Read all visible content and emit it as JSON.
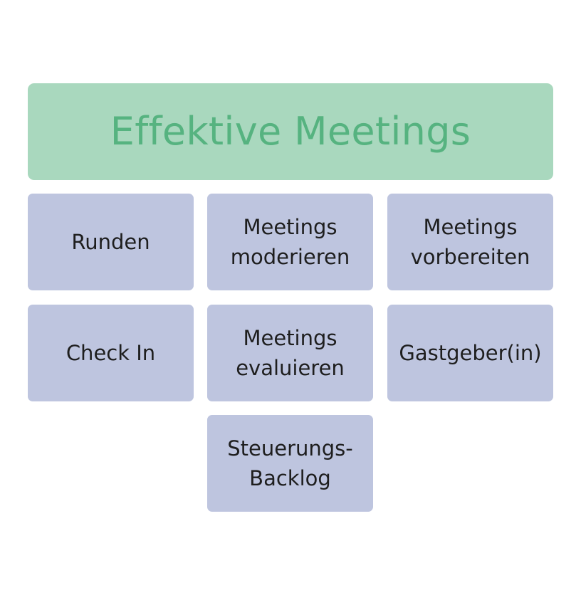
{
  "title": "Effektive Meetings",
  "colors": {
    "header_background": "#a9d8be",
    "header_text": "#56b380",
    "tile_background": "#bec5df",
    "tile_text": "#1e1e1e"
  },
  "tiles": [
    {
      "label": "Runden"
    },
    {
      "label": "Meetings\nmoderieren"
    },
    {
      "label": "Meetings\nvorbereiten"
    },
    {
      "label": "Check In"
    },
    {
      "label": "Meetings\nevaluieren"
    },
    {
      "label": "Gastgeber(in)"
    },
    {
      "label": "Steuerungs-\nBacklog"
    }
  ]
}
